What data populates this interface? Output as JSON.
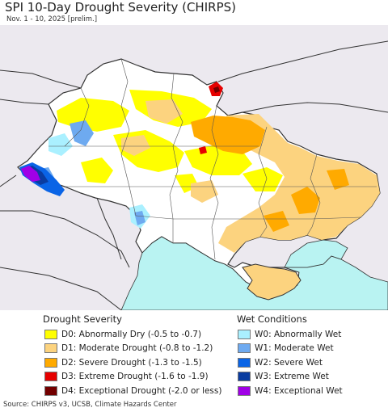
{
  "header": {
    "title": "SPI 10-Day Drought Severity (CHIRPS)",
    "subtitle": "Nov. 1 - 10, 2025 [prelim.]"
  },
  "legend": {
    "drought_title": "Drought Severity",
    "wet_title": "Wet Conditions",
    "drought_items": [
      {
        "label": "D0: Abnormally Dry (-0.5 to -0.7)",
        "color": "#ffff00"
      },
      {
        "label": "D1: Moderate Drought (-0.8 to -1.2)",
        "color": "#fcd37f"
      },
      {
        "label": "D2: Severe Drought (-1.3 to -1.5)",
        "color": "#ffaa00"
      },
      {
        "label": "D3: Extreme Drought (-1.6 to -1.9)",
        "color": "#e60000"
      },
      {
        "label": "D4: Exceptional Drought (-2.0 or less)",
        "color": "#730000"
      }
    ],
    "wet_items": [
      {
        "label": "W0: Abnormally Wet",
        "color": "#aaf0ff"
      },
      {
        "label": "W1: Moderate Wet",
        "color": "#6eaaf0"
      },
      {
        "label": "W2: Severe Wet",
        "color": "#0a64e6"
      },
      {
        "label": "W3: Extreme Wet",
        "color": "#0a3ca0"
      },
      {
        "label": "W4: Exceptional Wet",
        "color": "#a000e6"
      }
    ]
  },
  "map": {
    "background_color": "#ece9ef",
    "sea_color": "#b9f3f2",
    "land_color": "#ffffff",
    "border_color": "#333333"
  },
  "footer": {
    "source": "Source: CHIRPS v3, UCSB, Climate Hazards Center"
  }
}
